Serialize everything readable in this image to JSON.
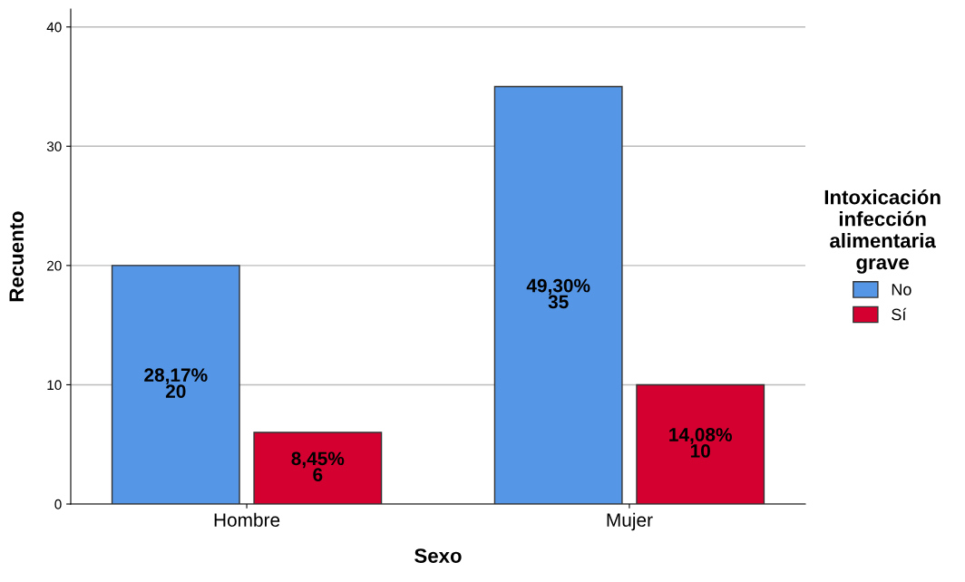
{
  "chart_data": {
    "type": "bar",
    "xlabel": "Sexo",
    "ylabel": "Recuento",
    "categories": [
      "Hombre",
      "Mujer"
    ],
    "series": [
      {
        "name": "No",
        "color": "#5596e6",
        "values": [
          20,
          35
        ],
        "value_labels": [
          "28,17%\n20",
          "49,30%\n35"
        ]
      },
      {
        "name": "Sí",
        "color": "#d30030",
        "values": [
          6,
          10
        ],
        "value_labels": [
          "8,45%\n6",
          "14,08%\n10"
        ]
      }
    ],
    "legend_title": "Intoxicación\ninfección\nalimentaria\ngrave",
    "ylim": [
      0,
      41.5
    ],
    "yticks": [
      0,
      10,
      20,
      30,
      40
    ],
    "grid": "y",
    "legend": "right"
  }
}
